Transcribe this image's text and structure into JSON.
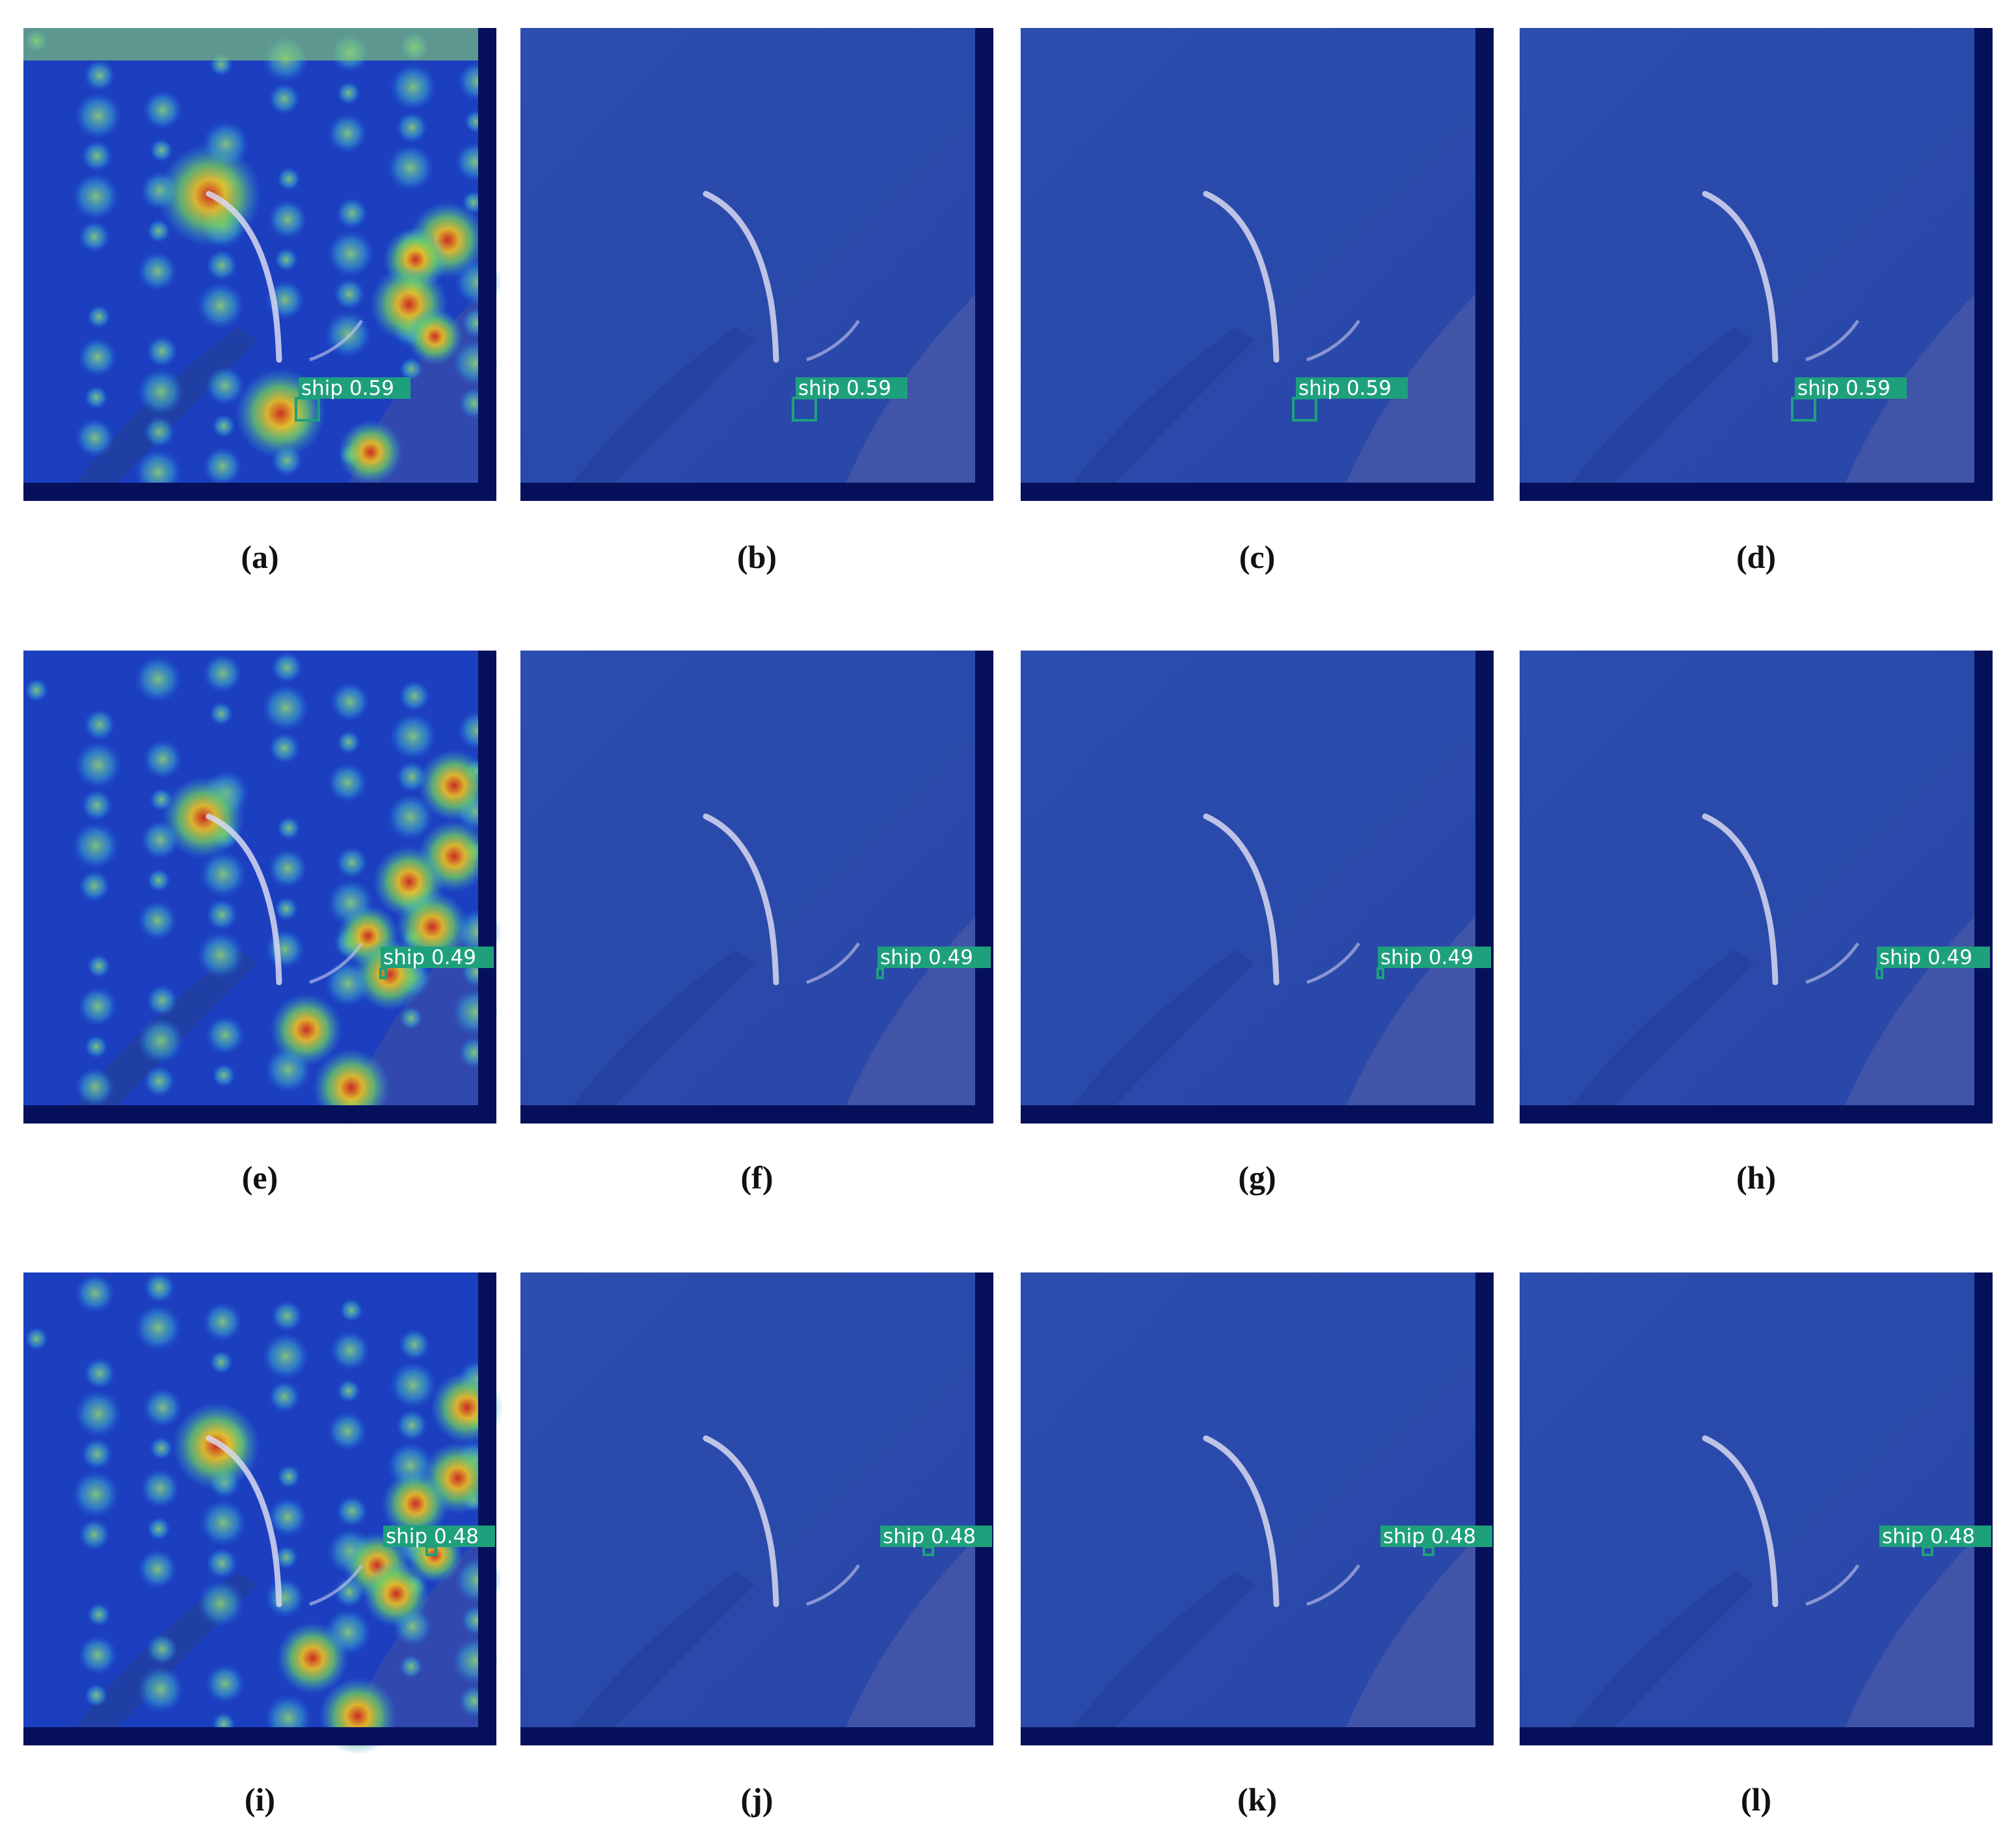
{
  "panels": [
    {
      "label": "(a)",
      "detection": "ship 0.59"
    },
    {
      "label": "(b)",
      "detection": "ship 0.59"
    },
    {
      "label": "(c)",
      "detection": "ship 0.59"
    },
    {
      "label": "(d)",
      "detection": "ship 0.59"
    },
    {
      "label": "(e)",
      "detection": "ship 0.49"
    },
    {
      "label": "(f)",
      "detection": "ship 0.49"
    },
    {
      "label": "(g)",
      "detection": "ship 0.49"
    },
    {
      "label": "(h)",
      "detection": "ship 0.49"
    },
    {
      "label": "(i)",
      "detection": "ship 0.48"
    },
    {
      "label": "(j)",
      "detection": "ship 0.48"
    },
    {
      "label": "(k)",
      "detection": "ship 0.48"
    },
    {
      "label": "(l)",
      "detection": "ship 0.48"
    }
  ]
}
